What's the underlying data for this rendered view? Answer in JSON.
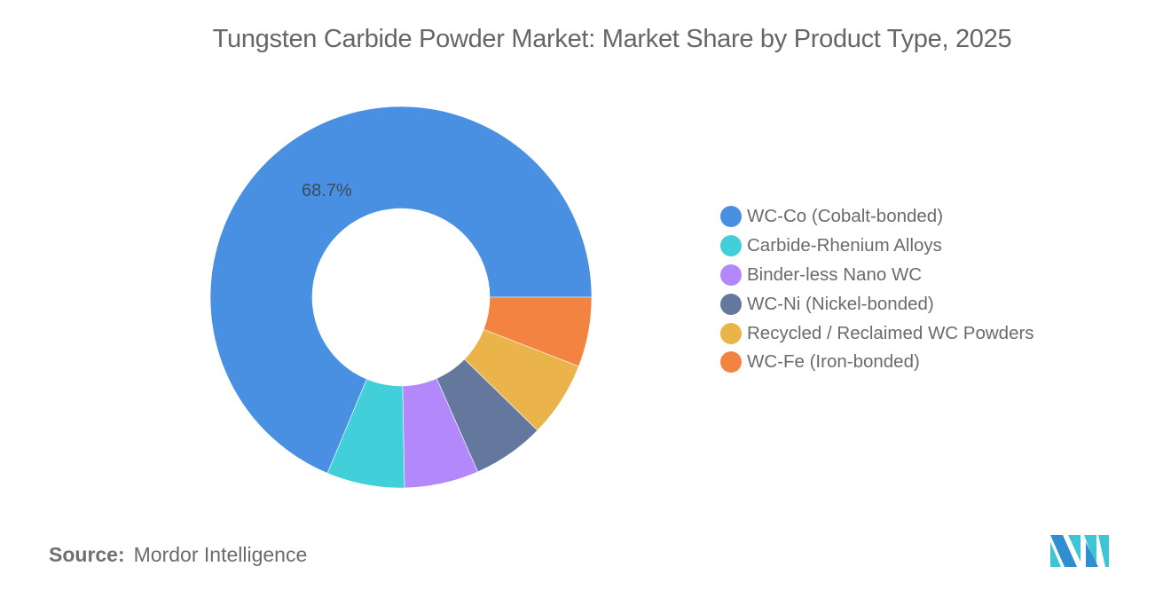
{
  "title": "Tungsten Carbide Powder Market: Market Share by Product Type, 2025",
  "source": {
    "label": "Source:",
    "value": "Mordor Intelligence"
  },
  "logo": {
    "name": "mordor-intelligence-logo",
    "colors": [
      "#2f8fd0",
      "#3dc5d6"
    ]
  },
  "chart_data": {
    "type": "pie",
    "variant": "donut",
    "title": "Tungsten Carbide Powder Market: Market Share by Product Type, 2025",
    "categories": [
      "WC-Co (Cobalt-bonded)",
      "Carbide-Rhenium Alloys",
      "Binder-less Nano WC",
      "WC-Ni (Nickel-bonded)",
      "Recycled / Reclaimed WC Powders",
      "WC-Fe (Iron-bonded)"
    ],
    "values": [
      68.7,
      6.6,
      6.3,
      6.1,
      6.4,
      5.9
    ],
    "colors": [
      "#4a90e2",
      "#41cfd9",
      "#b388fb",
      "#63789c",
      "#ebb44b",
      "#f38341"
    ],
    "data_labels": [
      {
        "category": "WC-Co (Cobalt-bonded)",
        "text": "68.7%"
      }
    ],
    "legend_position": "right",
    "unit": "%"
  },
  "legend": {
    "items": [
      {
        "label": "WC-Co (Cobalt-bonded)",
        "color": "#4a90e2"
      },
      {
        "label": "Carbide-Rhenium Alloys",
        "color": "#41cfd9"
      },
      {
        "label": "Binder-less Nano WC",
        "color": "#b388fb"
      },
      {
        "label": "WC-Ni (Nickel-bonded)",
        "color": "#63789c"
      },
      {
        "label": "Recycled / Reclaimed WC Powders",
        "color": "#ebb44b"
      },
      {
        "label": "WC-Fe (Iron-bonded)",
        "color": "#f38341"
      }
    ]
  },
  "labels": {
    "wc_co_pct": "68.7%"
  }
}
